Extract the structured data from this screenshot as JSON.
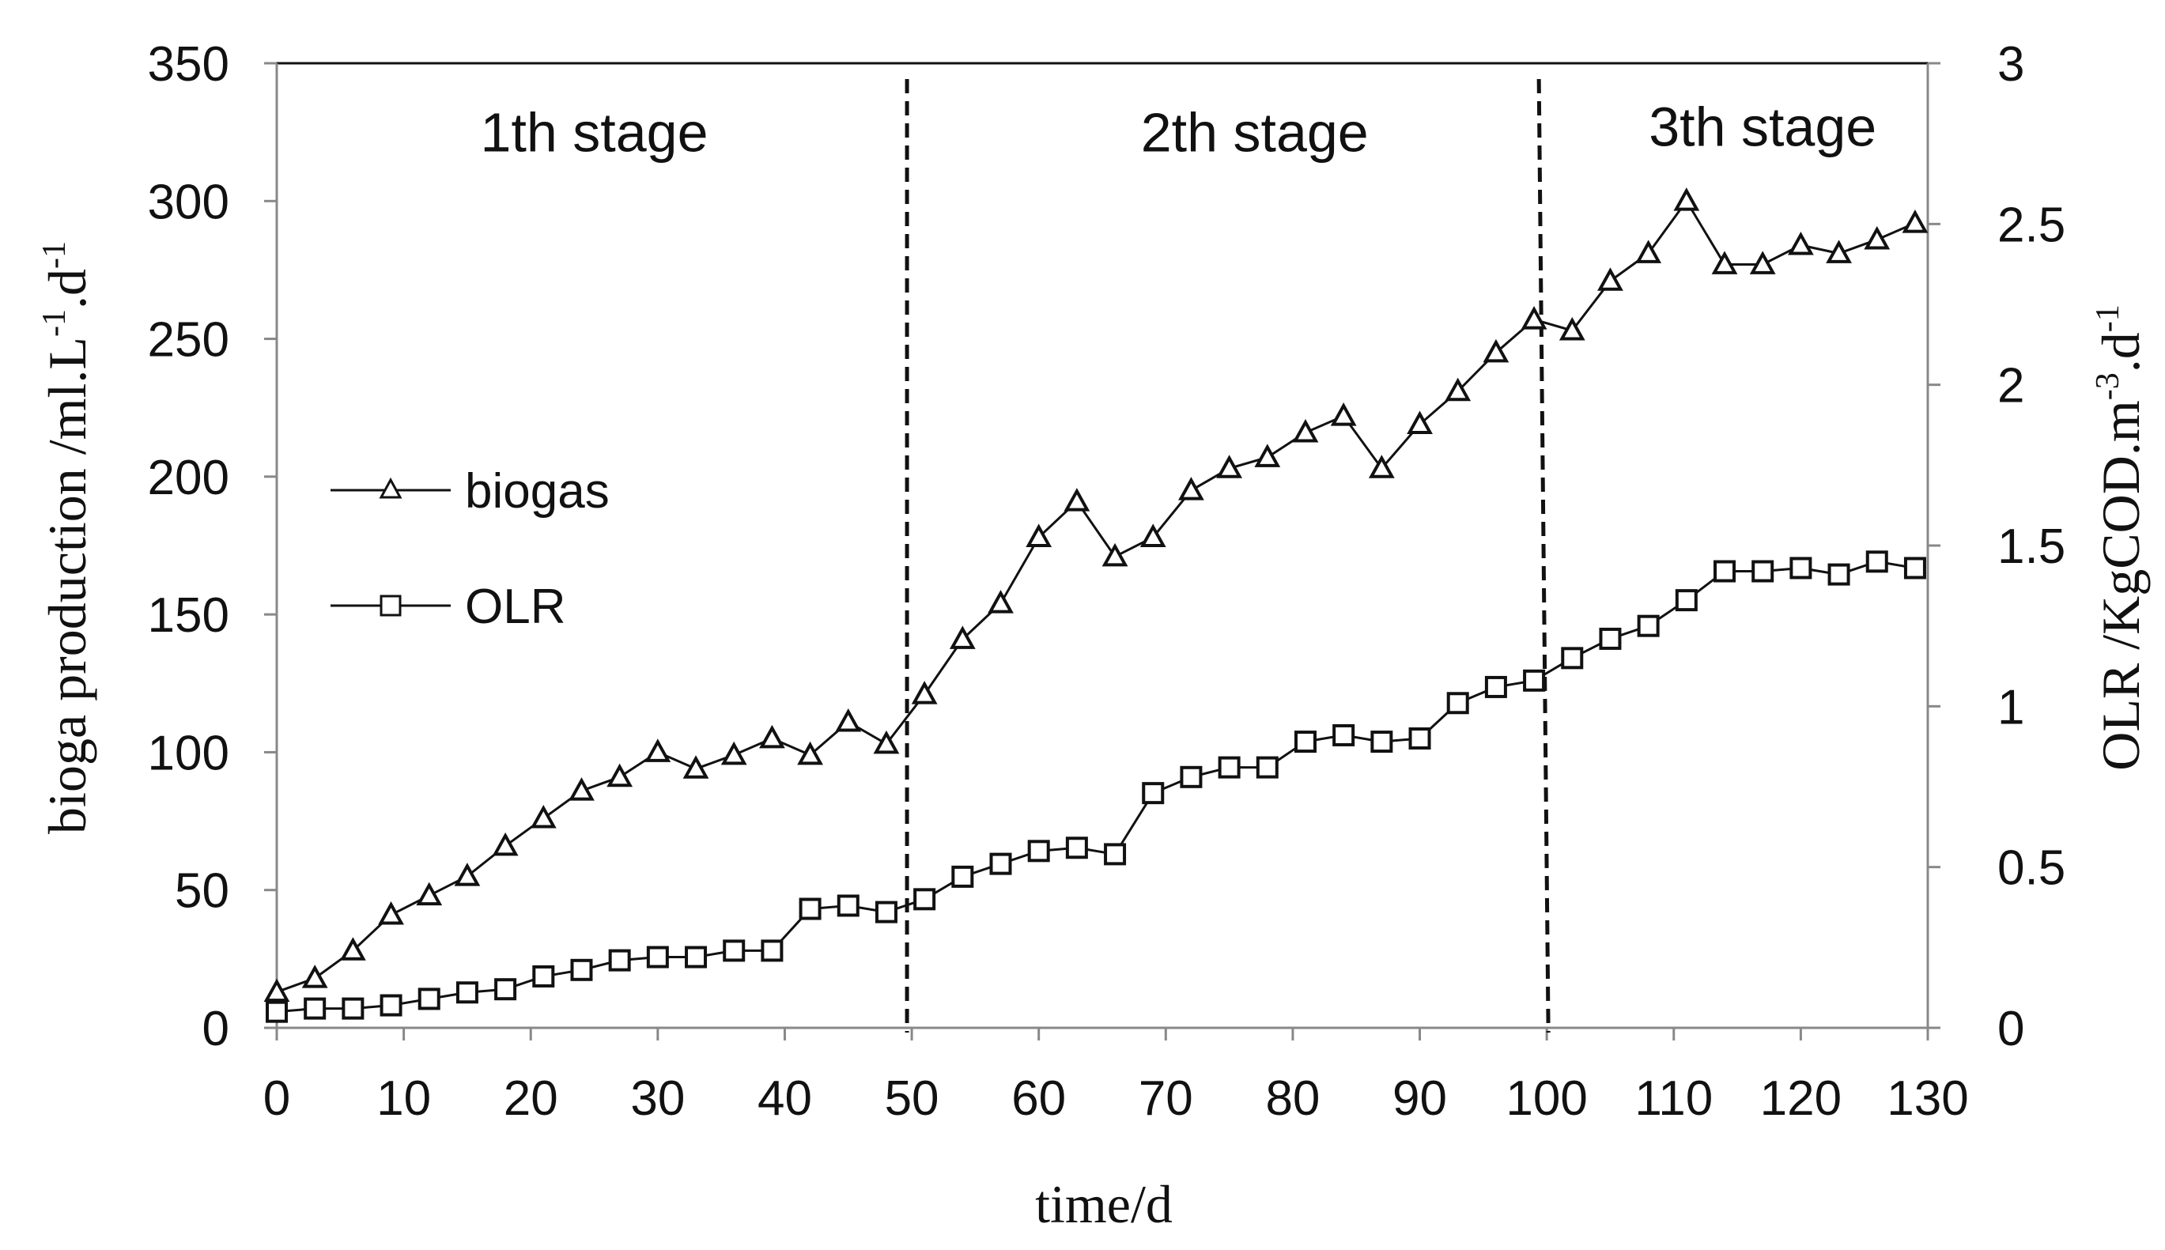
{
  "chart_data": {
    "type": "line",
    "x": [
      0,
      3,
      6,
      9,
      12,
      15,
      18,
      21,
      24,
      27,
      30,
      33,
      36,
      39,
      42,
      45,
      48,
      51,
      54,
      57,
      60,
      63,
      66,
      69,
      72,
      75,
      78,
      81,
      84,
      87,
      90,
      93,
      96,
      99,
      102,
      105,
      108,
      111,
      114,
      117,
      120,
      123,
      126,
      129
    ],
    "series": [
      {
        "name": "biogas",
        "axis": "left",
        "marker": "triangle",
        "values": [
          13,
          18,
          28,
          41,
          48,
          55,
          66,
          76,
          86,
          91,
          100,
          94,
          99,
          105,
          99,
          111,
          103,
          121,
          141,
          154,
          178,
          191,
          171,
          178,
          195,
          203,
          207,
          216,
          222,
          203,
          219,
          231,
          245,
          257,
          253,
          271,
          281,
          300,
          277,
          277,
          284,
          281,
          286,
          292
        ]
      },
      {
        "name": "OLR",
        "axis": "right",
        "marker": "square",
        "values": [
          0.05,
          0.06,
          0.06,
          0.07,
          0.09,
          0.11,
          0.12,
          0.16,
          0.18,
          0.21,
          0.22,
          0.22,
          0.24,
          0.24,
          0.37,
          0.38,
          0.36,
          0.4,
          0.47,
          0.51,
          0.55,
          0.56,
          0.54,
          0.73,
          0.78,
          0.81,
          0.81,
          0.89,
          0.91,
          0.89,
          0.9,
          1.01,
          1.06,
          1.08,
          1.15,
          1.21,
          1.25,
          1.33,
          1.42,
          1.42,
          1.43,
          1.41,
          1.45,
          1.43
        ]
      }
    ],
    "xlabel": "time/d",
    "ylabel": "bioga production /ml.L",
    "ylabel_sup1": "-1",
    "ylabel_mid": ".d",
    "ylabel_sup2": "-1",
    "y2label": "OLR  /KgCOD.m",
    "y2label_sup1": "-3",
    "y2label_mid": ".d",
    "y2label_sup2": "-1",
    "xlim": [
      0,
      130
    ],
    "ylim": [
      0,
      350
    ],
    "y2lim": [
      0,
      3
    ],
    "xticks": [
      "0",
      "10",
      "20",
      "30",
      "40",
      "50",
      "60",
      "70",
      "80",
      "90",
      "100",
      "110",
      "120",
      "130"
    ],
    "yticks": [
      "0",
      "50",
      "100",
      "150",
      "200",
      "250",
      "300",
      "350"
    ],
    "y2ticks": [
      "0",
      "0.5",
      "1",
      "1.5",
      "2",
      "2.5",
      "3"
    ],
    "stage_dividers": [
      50,
      100
    ],
    "stage_labels": [
      {
        "text": "1th stage",
        "x": 25,
        "y": 318
      },
      {
        "text": "2th stage",
        "x": 77,
        "y": 318
      },
      {
        "text": "3th stage",
        "x": 117,
        "y": 320
      }
    ],
    "legend": {
      "placement": "center-left",
      "entries": [
        "biogas",
        "OLR"
      ]
    },
    "grid": false
  }
}
